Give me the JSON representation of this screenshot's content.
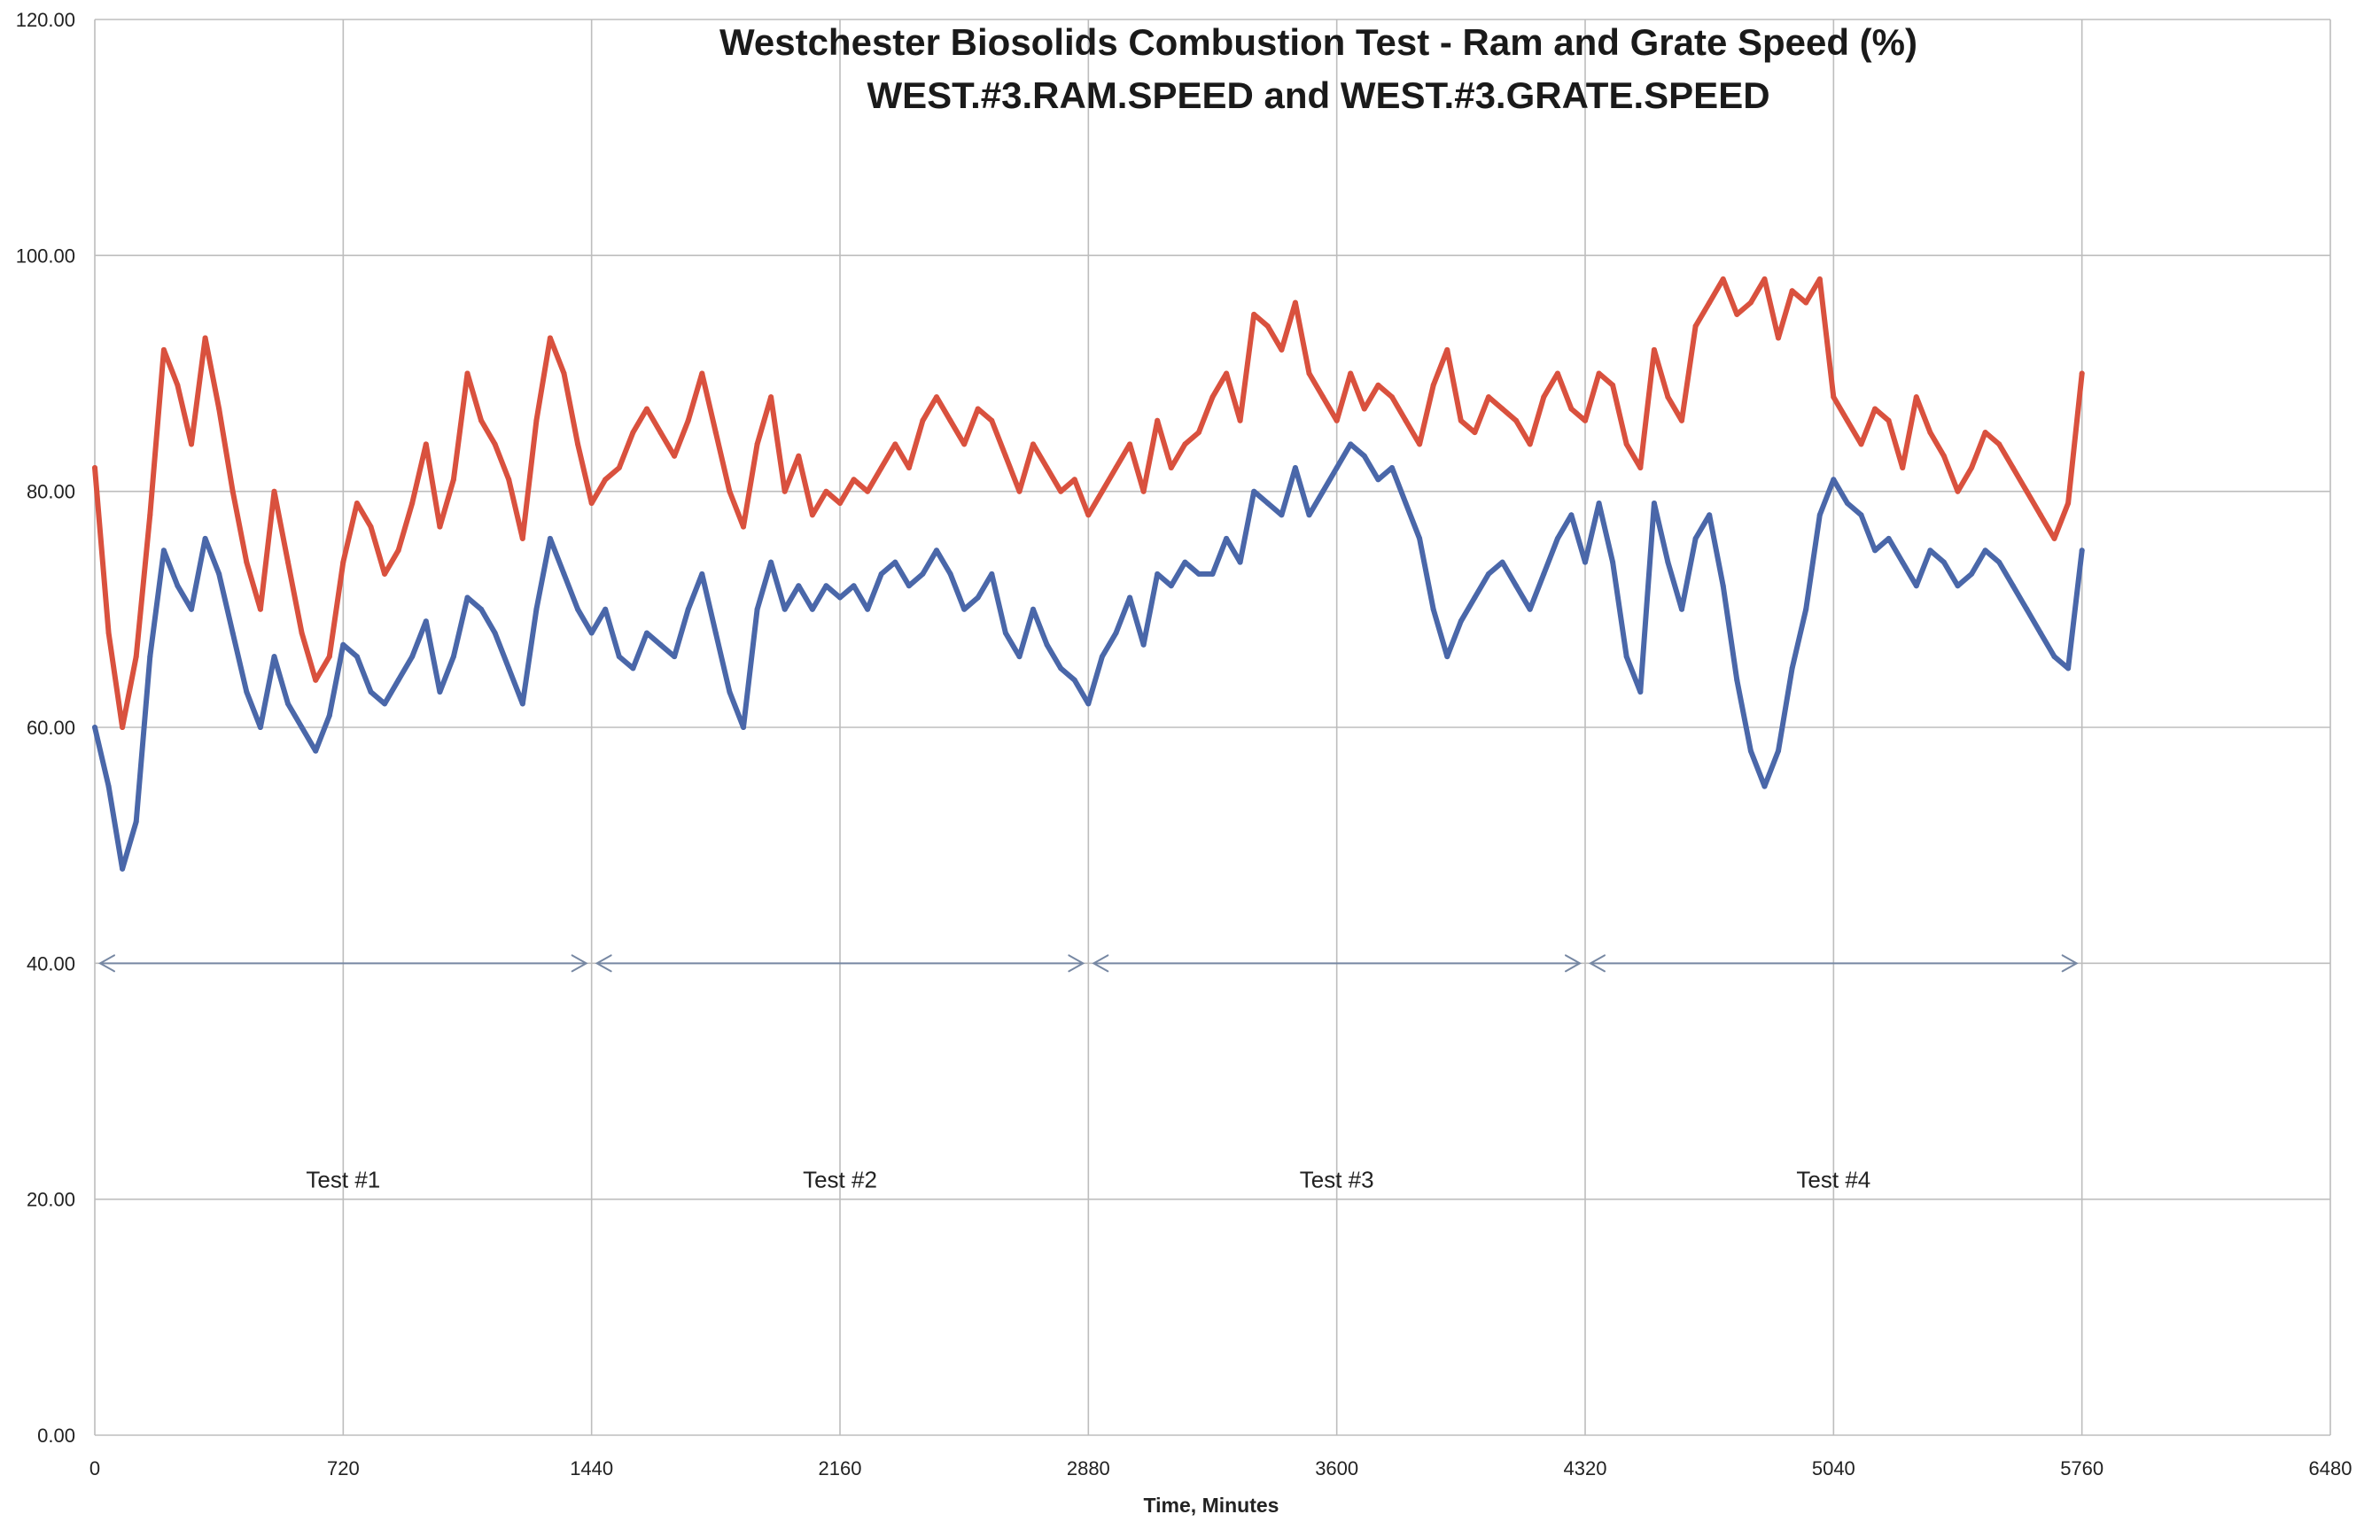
{
  "chart_data": {
    "type": "line",
    "title": "Westchester Biosolids Combustion Test - Ram and Grate Speed (%)",
    "subtitle": "WEST.#3.RAM.SPEED and WEST.#3.GRATE.SPEED",
    "xlabel": "Time, Minutes",
    "ylabel": "",
    "xlim": [
      0,
      6480
    ],
    "ylim": [
      0,
      120
    ],
    "x_ticks": [
      "0",
      "720",
      "1440",
      "2160",
      "2880",
      "3600",
      "4320",
      "5040",
      "5760",
      "6480"
    ],
    "y_ticks": [
      "0.00",
      "20.00",
      "40.00",
      "60.00",
      "80.00",
      "100.00",
      "120.00"
    ],
    "grid": true,
    "legend": "none",
    "series": [
      {
        "color": "#d9513e",
        "x": [
          0,
          40,
          80,
          120,
          160,
          200,
          240,
          280,
          320,
          360,
          400,
          440,
          480,
          520,
          560,
          600,
          640,
          680,
          720,
          760,
          800,
          840,
          880,
          920,
          960,
          1000,
          1040,
          1080,
          1120,
          1160,
          1200,
          1240,
          1280,
          1320,
          1360,
          1400,
          1440,
          1480,
          1520,
          1560,
          1600,
          1640,
          1680,
          1720,
          1760,
          1800,
          1840,
          1880,
          1920,
          1960,
          2000,
          2040,
          2080,
          2120,
          2160,
          2200,
          2240,
          2280,
          2320,
          2360,
          2400,
          2440,
          2480,
          2520,
          2560,
          2600,
          2640,
          2680,
          2720,
          2760,
          2800,
          2840,
          2880,
          2920,
          2960,
          3000,
          3040,
          3080,
          3120,
          3160,
          3200,
          3240,
          3280,
          3320,
          3360,
          3400,
          3440,
          3480,
          3520,
          3560,
          3600,
          3640,
          3680,
          3720,
          3760,
          3800,
          3840,
          3880,
          3920,
          3960,
          4000,
          4040,
          4080,
          4120,
          4160,
          4200,
          4240,
          4280,
          4320,
          4360,
          4400,
          4440,
          4480,
          4520,
          4560,
          4600,
          4640,
          4680,
          4720,
          4760,
          4800,
          4840,
          4880,
          4920,
          4960,
          5000,
          5040,
          5080,
          5120,
          5160,
          5200,
          5240,
          5280,
          5320,
          5360,
          5400,
          5440,
          5480,
          5520,
          5560,
          5600,
          5640,
          5680,
          5720,
          5760
        ],
        "values": [
          82,
          68,
          60,
          66,
          78,
          92,
          89,
          84,
          93,
          87,
          80,
          74,
          70,
          80,
          74,
          68,
          64,
          66,
          74,
          79,
          77,
          73,
          75,
          79,
          84,
          77,
          81,
          90,
          86,
          84,
          81,
          76,
          86,
          93,
          90,
          84,
          79,
          81,
          82,
          85,
          87,
          85,
          83,
          86,
          90,
          85,
          80,
          77,
          84,
          88,
          80,
          83,
          78,
          80,
          79,
          81,
          80,
          82,
          84,
          82,
          86,
          88,
          86,
          84,
          87,
          86,
          83,
          80,
          84,
          82,
          80,
          81,
          78,
          80,
          82,
          84,
          80,
          86,
          82,
          84,
          85,
          88,
          90,
          86,
          95,
          94,
          92,
          96,
          90,
          88,
          86,
          90,
          87,
          89,
          88,
          86,
          84,
          89,
          92,
          86,
          85,
          88,
          87,
          86,
          84,
          88,
          90,
          87,
          86,
          90,
          89,
          84,
          82,
          92,
          88,
          86,
          94,
          96,
          98,
          95,
          96,
          98,
          93,
          97,
          96,
          98,
          88,
          86,
          84,
          87,
          86,
          82,
          88,
          85,
          83,
          80,
          82,
          85,
          84,
          82,
          80,
          78,
          76,
          79,
          90
        ]
      },
      {
        "color": "#4a67a9",
        "x": [
          0,
          40,
          80,
          120,
          160,
          200,
          240,
          280,
          320,
          360,
          400,
          440,
          480,
          520,
          560,
          600,
          640,
          680,
          720,
          760,
          800,
          840,
          880,
          920,
          960,
          1000,
          1040,
          1080,
          1120,
          1160,
          1200,
          1240,
          1280,
          1320,
          1360,
          1400,
          1440,
          1480,
          1520,
          1560,
          1600,
          1640,
          1680,
          1720,
          1760,
          1800,
          1840,
          1880,
          1920,
          1960,
          2000,
          2040,
          2080,
          2120,
          2160,
          2200,
          2240,
          2280,
          2320,
          2360,
          2400,
          2440,
          2480,
          2520,
          2560,
          2600,
          2640,
          2680,
          2720,
          2760,
          2800,
          2840,
          2880,
          2920,
          2960,
          3000,
          3040,
          3080,
          3120,
          3160,
          3200,
          3240,
          3280,
          3320,
          3360,
          3400,
          3440,
          3480,
          3520,
          3560,
          3600,
          3640,
          3680,
          3720,
          3760,
          3800,
          3840,
          3880,
          3920,
          3960,
          4000,
          4040,
          4080,
          4120,
          4160,
          4200,
          4240,
          4280,
          4320,
          4360,
          4400,
          4440,
          4480,
          4520,
          4560,
          4600,
          4640,
          4680,
          4720,
          4760,
          4800,
          4840,
          4880,
          4920,
          4960,
          5000,
          5040,
          5080,
          5120,
          5160,
          5200,
          5240,
          5280,
          5320,
          5360,
          5400,
          5440,
          5480,
          5520,
          5560,
          5600,
          5640,
          5680,
          5720,
          5760
        ],
        "values": [
          60,
          55,
          48,
          52,
          66,
          75,
          72,
          70,
          76,
          73,
          68,
          63,
          60,
          66,
          62,
          60,
          58,
          61,
          67,
          66,
          63,
          62,
          64,
          66,
          69,
          63,
          66,
          71,
          70,
          68,
          65,
          62,
          70,
          76,
          73,
          70,
          68,
          70,
          66,
          65,
          68,
          67,
          66,
          70,
          73,
          68,
          63,
          60,
          70,
          74,
          70,
          72,
          70,
          72,
          71,
          72,
          70,
          73,
          74,
          72,
          73,
          75,
          73,
          70,
          71,
          73,
          68,
          66,
          70,
          67,
          65,
          64,
          62,
          66,
          68,
          71,
          67,
          73,
          72,
          74,
          73,
          73,
          76,
          74,
          80,
          79,
          78,
          82,
          78,
          80,
          82,
          84,
          83,
          81,
          82,
          79,
          76,
          70,
          66,
          69,
          71,
          73,
          74,
          72,
          70,
          73,
          76,
          78,
          74,
          79,
          74,
          66,
          63,
          79,
          74,
          70,
          76,
          78,
          72,
          64,
          58,
          55,
          58,
          65,
          70,
          78,
          81,
          79,
          78,
          75,
          76,
          74,
          72,
          75,
          74,
          72,
          73,
          75,
          74,
          72,
          70,
          68,
          66,
          65,
          75
        ]
      }
    ],
    "annotations": {
      "arrow_y": 40,
      "segments": [
        {
          "label": "Test #1",
          "x_start": 0,
          "x_end": 1440,
          "label_y": 21
        },
        {
          "label": "Test #2",
          "x_start": 1440,
          "x_end": 2880,
          "label_y": 21
        },
        {
          "label": "Test #3",
          "x_start": 2880,
          "x_end": 4320,
          "label_y": 21
        },
        {
          "label": "Test #4",
          "x_start": 4320,
          "x_end": 5760,
          "label_y": 21
        }
      ]
    }
  }
}
